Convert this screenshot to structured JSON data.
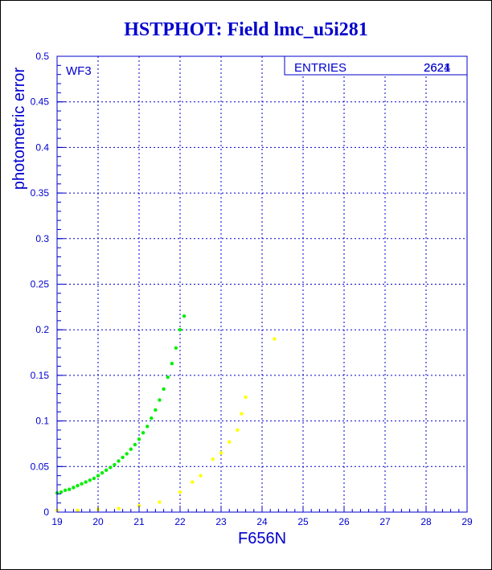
{
  "chart_data": {
    "type": "scatter",
    "title": "HSTPHOT: Field lmc_u5i281",
    "xlabel": "F656N",
    "ylabel": "photometric error",
    "panel_label": "WF3",
    "stats_box": {
      "label": "ENTRIES",
      "value_a": "2624",
      "value_b": "2621"
    },
    "xlim": [
      19,
      29
    ],
    "ylim": [
      0,
      0.5
    ],
    "x_ticks": [
      "19",
      "20",
      "21",
      "22",
      "23",
      "24",
      "25",
      "26",
      "27",
      "28",
      "29"
    ],
    "y_ticks": [
      "0",
      "0.05",
      "0.1",
      "0.15",
      "0.2",
      "0.25",
      "0.3",
      "0.35",
      "0.4",
      "0.45",
      "0.5"
    ],
    "grid": true,
    "series": [
      {
        "color": "#00ee00",
        "points": [
          [
            19.0,
            0.021
          ],
          [
            19.1,
            0.022
          ],
          [
            19.2,
            0.024
          ],
          [
            19.3,
            0.025
          ],
          [
            19.4,
            0.027
          ],
          [
            19.5,
            0.029
          ],
          [
            19.6,
            0.031
          ],
          [
            19.7,
            0.033
          ],
          [
            19.8,
            0.035
          ],
          [
            19.9,
            0.037
          ],
          [
            20.0,
            0.04
          ],
          [
            20.1,
            0.043
          ],
          [
            20.2,
            0.046
          ],
          [
            20.3,
            0.049
          ],
          [
            20.4,
            0.052
          ],
          [
            20.5,
            0.056
          ],
          [
            20.6,
            0.06
          ],
          [
            20.7,
            0.064
          ],
          [
            20.8,
            0.069
          ],
          [
            20.9,
            0.074
          ],
          [
            21.0,
            0.08
          ],
          [
            21.1,
            0.087
          ],
          [
            21.2,
            0.094
          ],
          [
            21.3,
            0.103
          ],
          [
            21.4,
            0.112
          ],
          [
            21.5,
            0.123
          ],
          [
            21.6,
            0.135
          ],
          [
            21.7,
            0.148
          ],
          [
            21.8,
            0.163
          ],
          [
            21.9,
            0.18
          ],
          [
            22.0,
            0.2
          ],
          [
            22.1,
            0.215
          ]
        ]
      },
      {
        "color": "#ffff00",
        "points": [
          [
            19.0,
            0.002
          ],
          [
            19.5,
            0.002
          ],
          [
            20.0,
            0.003
          ],
          [
            20.5,
            0.004
          ],
          [
            21.0,
            0.007
          ],
          [
            21.5,
            0.011
          ],
          [
            22.0,
            0.022
          ],
          [
            22.3,
            0.033
          ],
          [
            22.5,
            0.04
          ],
          [
            22.8,
            0.058
          ],
          [
            23.0,
            0.065
          ],
          [
            23.2,
            0.077
          ],
          [
            23.4,
            0.09
          ],
          [
            23.5,
            0.108
          ],
          [
            23.6,
            0.126
          ],
          [
            24.3,
            0.19
          ]
        ]
      }
    ]
  }
}
